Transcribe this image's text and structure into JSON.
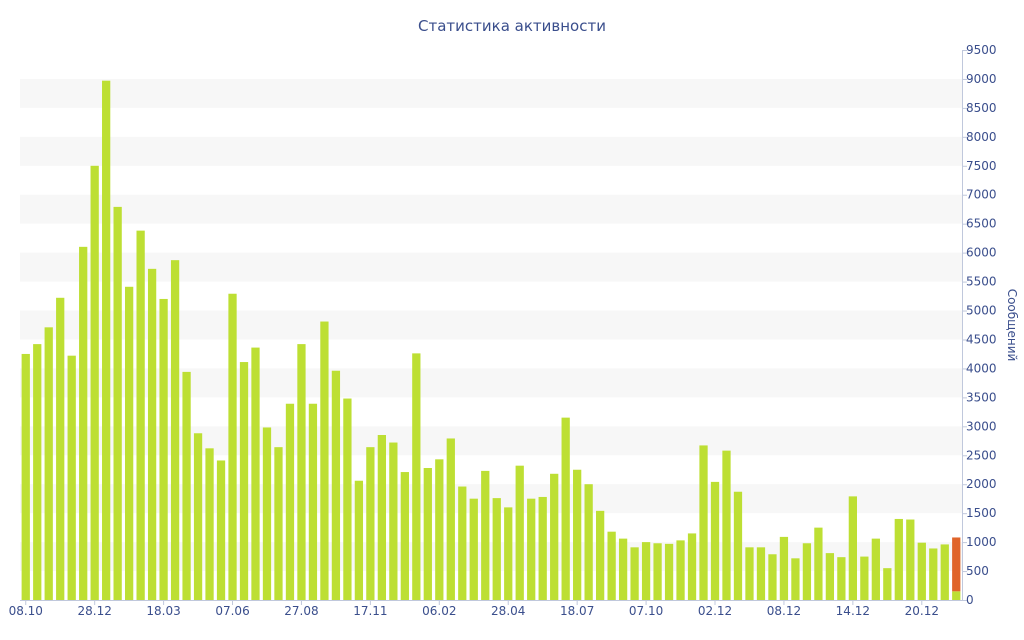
{
  "chart_data": {
    "type": "bar",
    "title": "Статистика активности",
    "ylabel": "Сообщений",
    "xlabel": "",
    "ylim": [
      0,
      9500
    ],
    "y_ticks": [
      0,
      500,
      1000,
      1500,
      2000,
      2500,
      3000,
      3500,
      4000,
      4500,
      5000,
      5500,
      6000,
      6500,
      7000,
      7500,
      8000,
      8500,
      9000,
      9500
    ],
    "y_axis_position": "right",
    "grid": "alternating horizontal bands",
    "legend": "none",
    "x_tick_labels": [
      {
        "label": "08.10",
        "index": 0
      },
      {
        "label": "28.12",
        "index": 6
      },
      {
        "label": "18.03",
        "index": 12
      },
      {
        "label": "07.06",
        "index": 18
      },
      {
        "label": "27.08",
        "index": 24
      },
      {
        "label": "17.11",
        "index": 30
      },
      {
        "label": "06.02",
        "index": 36
      },
      {
        "label": "28.04",
        "index": 42
      },
      {
        "label": "18.07",
        "index": 48
      },
      {
        "label": "07.10",
        "index": 54
      },
      {
        "label": "02.12",
        "index": 60
      },
      {
        "label": "08.12",
        "index": 66
      },
      {
        "label": "14.12",
        "index": 72
      },
      {
        "label": "20.12",
        "index": 78
      }
    ],
    "series": [
      {
        "color": "#bddf33",
        "values": [
          4250,
          4420,
          4710,
          5220,
          4220,
          6100,
          7500,
          8970,
          6790,
          5410,
          6380,
          5720,
          5200,
          5870,
          3940,
          2880,
          2620,
          2410,
          5290,
          4110,
          4360,
          2980,
          2640,
          3390,
          4420,
          3390,
          4810,
          3960,
          3480,
          2060,
          2640,
          2850,
          2720,
          2210,
          4260,
          2280,
          2430,
          2790,
          1960,
          1750,
          2230,
          1760,
          1600,
          2320,
          1750,
          1780,
          2180,
          3150,
          2250,
          2000,
          1540,
          1180,
          1060,
          910,
          1000,
          980,
          970,
          1030,
          1150,
          2670,
          2040,
          2580,
          1870,
          910,
          910,
          790,
          1090,
          720,
          980,
          1250,
          810,
          740,
          1790,
          750,
          1060,
          550,
          1400,
          1390,
          990,
          890,
          960,
          150
        ]
      },
      {
        "color": "#e0642a",
        "values": [
          0,
          0,
          0,
          0,
          0,
          0,
          0,
          0,
          0,
          0,
          0,
          0,
          0,
          0,
          0,
          0,
          0,
          0,
          0,
          0,
          0,
          0,
          0,
          0,
          0,
          0,
          0,
          0,
          0,
          0,
          0,
          0,
          0,
          0,
          0,
          0,
          0,
          0,
          0,
          0,
          0,
          0,
          0,
          0,
          0,
          0,
          0,
          0,
          0,
          0,
          0,
          0,
          0,
          0,
          0,
          0,
          0,
          0,
          0,
          0,
          0,
          0,
          0,
          0,
          0,
          0,
          0,
          0,
          0,
          0,
          0,
          0,
          0,
          0,
          0,
          0,
          0,
          0,
          0,
          0,
          0,
          930
        ]
      }
    ],
    "colors": {
      "text": "#3a4e8c",
      "band": "#f7f7f7",
      "axis": "#c0c8dc"
    }
  }
}
